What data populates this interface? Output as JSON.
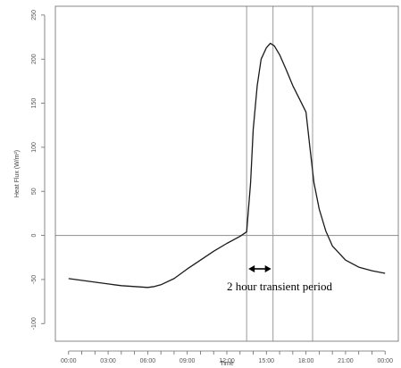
{
  "chart_data": {
    "type": "line",
    "title": "",
    "xlabel": "Time",
    "ylabel": "Heat Flux (W/m²)",
    "xlim": [
      -1,
      25
    ],
    "ylim": [
      -120,
      260
    ],
    "x_tick_values": [
      0,
      3,
      6,
      9,
      12,
      15,
      18,
      21,
      24
    ],
    "x_tick_labels": [
      "00:00",
      "03:00",
      "06:00",
      "09:00",
      "12:00",
      "15:00",
      "18:00",
      "21:00",
      "00:00"
    ],
    "x_minor_step": 1,
    "y_tick_values": [
      -100,
      -50,
      0,
      50,
      100,
      150,
      200,
      250
    ],
    "y_tick_labels": [
      "-100",
      "-50",
      "0",
      "50",
      "100",
      "150",
      "200",
      "250"
    ],
    "horizontal_lines": [
      0
    ],
    "vertical_lines": [
      13.5,
      15.5,
      18.5
    ],
    "grid": false,
    "legend": "none",
    "series": [
      {
        "x": [
          0,
          1,
          2,
          3,
          4,
          5,
          6,
          6.5,
          7,
          8,
          9,
          10,
          11,
          12,
          13,
          13.5,
          13.8,
          14,
          14.3,
          14.6,
          15,
          15.3,
          15.6,
          16,
          16.5,
          17,
          17.5,
          18,
          18.3,
          18.6,
          19,
          19.5,
          20,
          21,
          22,
          23,
          24
        ],
        "y": [
          -49,
          -51,
          -53,
          -55,
          -57,
          -58,
          -59,
          -58,
          -56,
          -49,
          -38,
          -28,
          -18,
          -9,
          -1,
          4,
          60,
          120,
          170,
          200,
          213,
          218,
          215,
          205,
          188,
          170,
          155,
          140,
          100,
          60,
          30,
          5,
          -12,
          -28,
          -36,
          -40,
          -43
        ]
      }
    ],
    "annotation": {
      "text": "2 hour transient period",
      "arrow_from": 13.5,
      "arrow_to": 15.5
    },
    "colors": {
      "line": "#1a1a1a",
      "reference_line": "#9a9a9a",
      "frame": "#6a6a6a"
    }
  }
}
